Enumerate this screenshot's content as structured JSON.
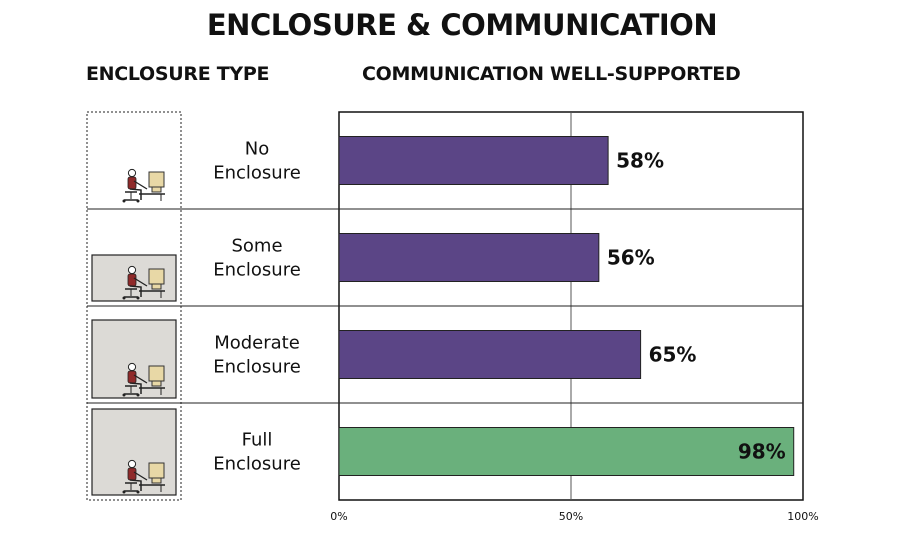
{
  "title": "ENCLOSURE & COMMUNICATION",
  "left_header": "ENCLOSURE TYPE",
  "right_header": "COMMUNICATION WELL-SUPPORTED",
  "chart_data": {
    "type": "bar",
    "orientation": "horizontal",
    "categories": [
      [
        "No",
        "Enclosure"
      ],
      [
        "Some",
        "Enclosure"
      ],
      [
        "Moderate",
        "Enclosure"
      ],
      [
        "Full",
        "Enclosure"
      ]
    ],
    "values": [
      58,
      56,
      65,
      98
    ],
    "value_labels": [
      "58%",
      "56%",
      "65%",
      "98%"
    ],
    "bar_colors": [
      "#5b4586",
      "#5b4586",
      "#5b4586",
      "#6ab07c"
    ],
    "xlim": [
      0,
      100
    ],
    "xticks": [
      0,
      50,
      100
    ],
    "xtick_labels": [
      "0%",
      "50%",
      "100%"
    ],
    "grid": true
  },
  "icons": [
    "office-worker-no-enclosure-icon",
    "office-worker-some-enclosure-icon",
    "office-worker-moderate-enclosure-icon",
    "office-worker-full-enclosure-icon"
  ]
}
